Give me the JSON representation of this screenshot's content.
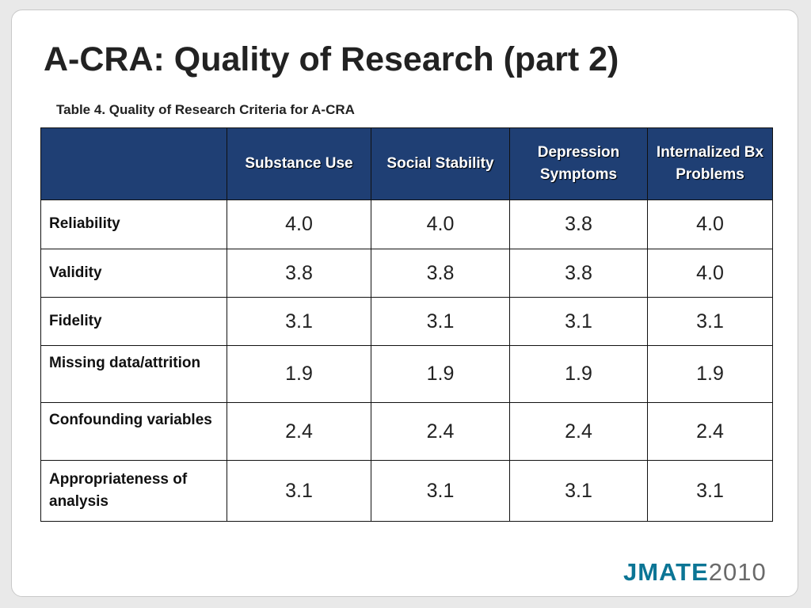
{
  "slide": {
    "title": "A-CRA: Quality of Research (part 2)",
    "caption": "Table 4. Quality of Research Criteria for A-CRA"
  },
  "table": {
    "corner": "",
    "columns": [
      "Substance Use",
      "Social Stability",
      "Depression Symptoms",
      "Internalized Bx Problems"
    ],
    "rows": [
      {
        "label": "Reliability",
        "values": [
          "4.0",
          "4.0",
          "3.8",
          "4.0"
        ]
      },
      {
        "label": "Validity",
        "values": [
          "3.8",
          "3.8",
          "3.8",
          "4.0"
        ]
      },
      {
        "label": "Fidelity",
        "values": [
          "3.1",
          "3.1",
          "3.1",
          "3.1"
        ]
      },
      {
        "label": "Missing data/attrition",
        "values": [
          "1.9",
          "1.9",
          "1.9",
          "1.9"
        ]
      },
      {
        "label": "Confounding variables",
        "values": [
          "2.4",
          "2.4",
          "2.4",
          "2.4"
        ]
      },
      {
        "label": "Appropriateness of analysis",
        "values": [
          "3.1",
          "3.1",
          "3.1",
          "3.1"
        ]
      }
    ]
  },
  "logo": {
    "brand": "JMATE",
    "year": "2010"
  },
  "colors": {
    "header_bg": "#1f3f74",
    "logo_brand": "#0b7595",
    "logo_year": "#6a6a6a"
  }
}
